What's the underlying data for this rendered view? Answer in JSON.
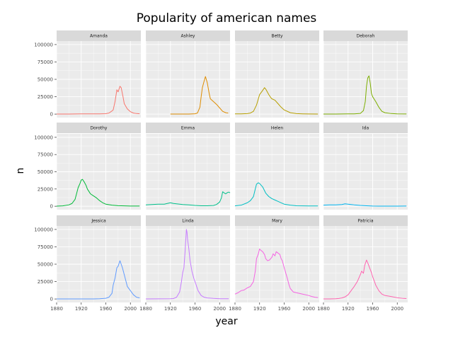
{
  "chart_data": {
    "type": "line",
    "title": "Popularity of american names",
    "xlabel": "year",
    "ylabel": "n",
    "xlim": [
      1880,
      2017
    ],
    "ylim": [
      -5000,
      105000
    ],
    "x_ticks": [
      1880,
      1920,
      1960,
      2000
    ],
    "y_ticks": [
      0,
      25000,
      50000,
      75000,
      100000
    ],
    "y_tick_labels": [
      "0",
      "25000",
      "50000",
      "75000",
      "100000"
    ],
    "facet_rows": 3,
    "facet_cols": 4,
    "grid": true,
    "legend": "none",
    "panel_background": "#EBEBEB",
    "strip_background": "#D9D9D9",
    "grid_color": "#FFFFFF",
    "series": [
      {
        "name": "Amanda",
        "color": "#F8766D",
        "points": [
          [
            1880,
            100
          ],
          [
            1900,
            150
          ],
          [
            1920,
            300
          ],
          [
            1940,
            300
          ],
          [
            1950,
            400
          ],
          [
            1960,
            600
          ],
          [
            1965,
            1500
          ],
          [
            1970,
            4500
          ],
          [
            1972,
            6000
          ],
          [
            1975,
            18000
          ],
          [
            1978,
            35000
          ],
          [
            1980,
            32000
          ],
          [
            1983,
            40000
          ],
          [
            1985,
            38000
          ],
          [
            1988,
            25000
          ],
          [
            1990,
            15000
          ],
          [
            1995,
            7500
          ],
          [
            2000,
            3500
          ],
          [
            2005,
            1500
          ],
          [
            2010,
            800
          ],
          [
            2015,
            500
          ]
        ]
      },
      {
        "name": "Ashley",
        "color": "#DE8C00",
        "points": [
          [
            1920,
            50
          ],
          [
            1930,
            80
          ],
          [
            1940,
            100
          ],
          [
            1950,
            150
          ],
          [
            1960,
            500
          ],
          [
            1964,
            1500
          ],
          [
            1968,
            10000
          ],
          [
            1970,
            25000
          ],
          [
            1972,
            38000
          ],
          [
            1975,
            48000
          ],
          [
            1977,
            54000
          ],
          [
            1980,
            45000
          ],
          [
            1983,
            30000
          ],
          [
            1985,
            22000
          ],
          [
            1990,
            18000
          ],
          [
            1995,
            14000
          ],
          [
            2000,
            9000
          ],
          [
            2005,
            4000
          ],
          [
            2010,
            2000
          ],
          [
            2014,
            1500
          ]
        ]
      },
      {
        "name": "Betty",
        "color": "#B79F00",
        "points": [
          [
            1880,
            300
          ],
          [
            1890,
            400
          ],
          [
            1900,
            700
          ],
          [
            1905,
            1500
          ],
          [
            1910,
            4000
          ],
          [
            1915,
            13000
          ],
          [
            1920,
            28000
          ],
          [
            1925,
            34000
          ],
          [
            1928,
            38000
          ],
          [
            1930,
            36000
          ],
          [
            1935,
            28000
          ],
          [
            1938,
            24000
          ],
          [
            1940,
            22000
          ],
          [
            1945,
            20000
          ],
          [
            1950,
            15000
          ],
          [
            1955,
            10000
          ],
          [
            1960,
            6000
          ],
          [
            1970,
            2000
          ],
          [
            1980,
            700
          ],
          [
            1990,
            400
          ],
          [
            2000,
            200
          ],
          [
            2015,
            100
          ]
        ]
      },
      {
        "name": "Deborah",
        "color": "#7CAE00",
        "points": [
          [
            1880,
            100
          ],
          [
            1900,
            150
          ],
          [
            1920,
            300
          ],
          [
            1930,
            400
          ],
          [
            1940,
            1000
          ],
          [
            1945,
            5000
          ],
          [
            1948,
            18000
          ],
          [
            1950,
            40000
          ],
          [
            1952,
            52000
          ],
          [
            1954,
            55000
          ],
          [
            1956,
            45000
          ],
          [
            1958,
            30000
          ],
          [
            1960,
            25000
          ],
          [
            1965,
            18000
          ],
          [
            1970,
            10000
          ],
          [
            1975,
            4000
          ],
          [
            1980,
            2000
          ],
          [
            1990,
            800
          ],
          [
            2000,
            400
          ],
          [
            2015,
            200
          ]
        ]
      },
      {
        "name": "Dorothy",
        "color": "#00BA38",
        "points": [
          [
            1880,
            200
          ],
          [
            1890,
            500
          ],
          [
            1900,
            2000
          ],
          [
            1905,
            4000
          ],
          [
            1910,
            10000
          ],
          [
            1913,
            20000
          ],
          [
            1915,
            27000
          ],
          [
            1918,
            33000
          ],
          [
            1920,
            38000
          ],
          [
            1922,
            39000
          ],
          [
            1925,
            35000
          ],
          [
            1928,
            30000
          ],
          [
            1930,
            25000
          ],
          [
            1935,
            18000
          ],
          [
            1940,
            15000
          ],
          [
            1945,
            12000
          ],
          [
            1950,
            8000
          ],
          [
            1955,
            5000
          ],
          [
            1960,
            3000
          ],
          [
            1970,
            1500
          ],
          [
            1980,
            800
          ],
          [
            1990,
            500
          ],
          [
            2000,
            300
          ],
          [
            2015,
            300
          ]
        ]
      },
      {
        "name": "Emma",
        "color": "#00C08B",
        "points": [
          [
            1880,
            2000
          ],
          [
            1890,
            2500
          ],
          [
            1900,
            3000
          ],
          [
            1910,
            3000
          ],
          [
            1915,
            4000
          ],
          [
            1920,
            5000
          ],
          [
            1925,
            4000
          ],
          [
            1930,
            3500
          ],
          [
            1940,
            2500
          ],
          [
            1950,
            2000
          ],
          [
            1960,
            1200
          ],
          [
            1970,
            700
          ],
          [
            1980,
            600
          ],
          [
            1990,
            1000
          ],
          [
            1995,
            2500
          ],
          [
            2000,
            6000
          ],
          [
            2003,
            12000
          ],
          [
            2005,
            21000
          ],
          [
            2008,
            19000
          ],
          [
            2010,
            18000
          ],
          [
            2013,
            20000
          ],
          [
            2015,
            20500
          ],
          [
            2017,
            19500
          ]
        ]
      },
      {
        "name": "Helen",
        "color": "#00BFC4",
        "points": [
          [
            1880,
            500
          ],
          [
            1890,
            1500
          ],
          [
            1900,
            5000
          ],
          [
            1905,
            8000
          ],
          [
            1910,
            14000
          ],
          [
            1913,
            25000
          ],
          [
            1915,
            32000
          ],
          [
            1918,
            34000
          ],
          [
            1920,
            33000
          ],
          [
            1925,
            28000
          ],
          [
            1930,
            19000
          ],
          [
            1935,
            14000
          ],
          [
            1940,
            11000
          ],
          [
            1945,
            9000
          ],
          [
            1950,
            7000
          ],
          [
            1955,
            5000
          ],
          [
            1960,
            3000
          ],
          [
            1970,
            1500
          ],
          [
            1980,
            700
          ],
          [
            1990,
            500
          ],
          [
            2000,
            400
          ],
          [
            2015,
            400
          ]
        ]
      },
      {
        "name": "Ida",
        "color": "#00B4F0",
        "points": [
          [
            1880,
            1500
          ],
          [
            1890,
            2000
          ],
          [
            1900,
            2000
          ],
          [
            1910,
            2500
          ],
          [
            1915,
            3500
          ],
          [
            1920,
            3000
          ],
          [
            1925,
            2500
          ],
          [
            1930,
            2000
          ],
          [
            1940,
            1200
          ],
          [
            1950,
            700
          ],
          [
            1960,
            300
          ],
          [
            1970,
            150
          ],
          [
            1980,
            100
          ],
          [
            1990,
            100
          ],
          [
            2000,
            150
          ],
          [
            2015,
            300
          ]
        ]
      },
      {
        "name": "Jessica",
        "color": "#619CFF",
        "points": [
          [
            1880,
            50
          ],
          [
            1900,
            80
          ],
          [
            1920,
            100
          ],
          [
            1940,
            150
          ],
          [
            1950,
            400
          ],
          [
            1960,
            1000
          ],
          [
            1965,
            2500
          ],
          [
            1970,
            8000
          ],
          [
            1972,
            20000
          ],
          [
            1975,
            30000
          ],
          [
            1978,
            45000
          ],
          [
            1980,
            47000
          ],
          [
            1983,
            55000
          ],
          [
            1985,
            50000
          ],
          [
            1987,
            45000
          ],
          [
            1990,
            35000
          ],
          [
            1995,
            18000
          ],
          [
            2000,
            12000
          ],
          [
            2005,
            6000
          ],
          [
            2010,
            2500
          ],
          [
            2015,
            1500
          ]
        ]
      },
      {
        "name": "Linda",
        "color": "#C77CFF",
        "points": [
          [
            1880,
            100
          ],
          [
            1900,
            200
          ],
          [
            1920,
            400
          ],
          [
            1925,
            600
          ],
          [
            1930,
            2500
          ],
          [
            1935,
            10000
          ],
          [
            1938,
            25000
          ],
          [
            1940,
            38000
          ],
          [
            1942,
            45000
          ],
          [
            1944,
            70000
          ],
          [
            1946,
            100000
          ],
          [
            1947,
            96000
          ],
          [
            1948,
            85000
          ],
          [
            1950,
            72000
          ],
          [
            1952,
            55000
          ],
          [
            1955,
            40000
          ],
          [
            1958,
            30000
          ],
          [
            1960,
            25000
          ],
          [
            1965,
            12000
          ],
          [
            1970,
            5000
          ],
          [
            1975,
            2500
          ],
          [
            1980,
            1500
          ],
          [
            1990,
            800
          ],
          [
            2000,
            400
          ],
          [
            2015,
            300
          ]
        ]
      },
      {
        "name": "Mary",
        "color": "#F564E3",
        "points": [
          [
            1880,
            7000
          ],
          [
            1885,
            9000
          ],
          [
            1890,
            12000
          ],
          [
            1895,
            13000
          ],
          [
            1900,
            16000
          ],
          [
            1905,
            18000
          ],
          [
            1910,
            25000
          ],
          [
            1913,
            40000
          ],
          [
            1915,
            58000
          ],
          [
            1918,
            65000
          ],
          [
            1920,
            72000
          ],
          [
            1922,
            70000
          ],
          [
            1925,
            68000
          ],
          [
            1928,
            64000
          ],
          [
            1930,
            58000
          ],
          [
            1933,
            55000
          ],
          [
            1936,
            56000
          ],
          [
            1940,
            60000
          ],
          [
            1942,
            65000
          ],
          [
            1945,
            62000
          ],
          [
            1947,
            68000
          ],
          [
            1950,
            66000
          ],
          [
            1953,
            64000
          ],
          [
            1955,
            58000
          ],
          [
            1957,
            55000
          ],
          [
            1960,
            45000
          ],
          [
            1965,
            30000
          ],
          [
            1968,
            20000
          ],
          [
            1970,
            15000
          ],
          [
            1975,
            10000
          ],
          [
            1980,
            9000
          ],
          [
            1985,
            8000
          ],
          [
            1990,
            7000
          ],
          [
            2000,
            5000
          ],
          [
            2005,
            3500
          ],
          [
            2010,
            2500
          ],
          [
            2015,
            2000
          ]
        ]
      },
      {
        "name": "Patricia",
        "color": "#FF64B0",
        "points": [
          [
            1880,
            100
          ],
          [
            1890,
            150
          ],
          [
            1900,
            300
          ],
          [
            1905,
            700
          ],
          [
            1910,
            1500
          ],
          [
            1915,
            3000
          ],
          [
            1920,
            6000
          ],
          [
            1925,
            12000
          ],
          [
            1930,
            18000
          ],
          [
            1935,
            25000
          ],
          [
            1940,
            35000
          ],
          [
            1942,
            40000
          ],
          [
            1945,
            37000
          ],
          [
            1947,
            48000
          ],
          [
            1950,
            56000
          ],
          [
            1952,
            52000
          ],
          [
            1955,
            45000
          ],
          [
            1958,
            38000
          ],
          [
            1960,
            32000
          ],
          [
            1963,
            25000
          ],
          [
            1965,
            20000
          ],
          [
            1970,
            12000
          ],
          [
            1975,
            7000
          ],
          [
            1980,
            5000
          ],
          [
            1990,
            3500
          ],
          [
            2000,
            1800
          ],
          [
            2010,
            800
          ],
          [
            2015,
            600
          ]
        ]
      }
    ]
  }
}
